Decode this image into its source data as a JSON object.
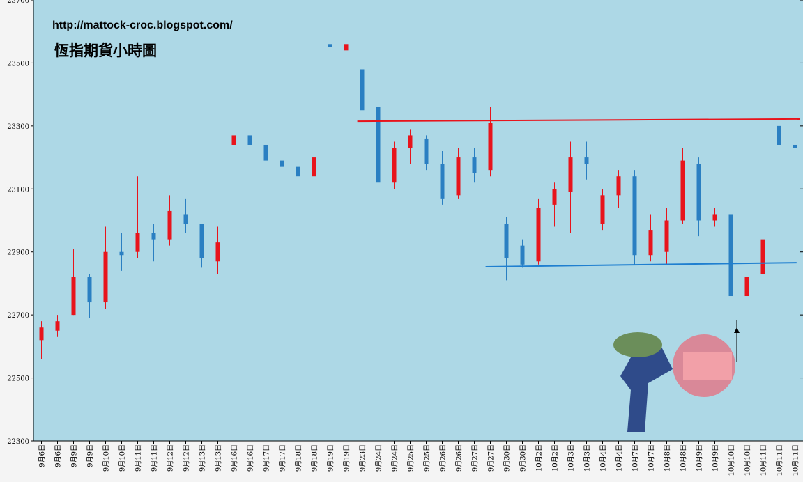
{
  "chart_data": {
    "type": "candlestick",
    "title": "恆指期貨小時圖",
    "subtitle": "http://mattock-croc.blogspot.com/",
    "categories": [
      "9月6日",
      "9月6日",
      "9月9日",
      "9月9日",
      "9月10日",
      "9月10日",
      "9月11日",
      "9月11日",
      "9月12日",
      "9月12日",
      "9月13日",
      "9月13日",
      "9月16日",
      "9月16日",
      "9月17日",
      "9月17日",
      "9月18日",
      "9月18日",
      "9月19日",
      "9月19日",
      "9月23日",
      "9月24日",
      "9月24日",
      "9月25日",
      "9月25日",
      "9月26日",
      "9月26日",
      "9月27日",
      "9月27日",
      "9月30日",
      "9月30日",
      "10月2日",
      "10月2日",
      "10月3日",
      "10月3日",
      "10月4日",
      "10月4日",
      "10月7日",
      "10月7日",
      "10月8日",
      "10月8日",
      "10月9日",
      "10月9日",
      "10月10日",
      "10月10日",
      "10月11日",
      "10月11日",
      "10月11日"
    ],
    "open": [
      22620,
      22650,
      22700,
      22820,
      22740,
      22900,
      22900,
      22960,
      22940,
      23020,
      22990,
      22870,
      23240,
      23270,
      23240,
      23190,
      23170,
      23140,
      23560,
      23540,
      23480,
      23360,
      23120,
      23230,
      23260,
      23180,
      23080,
      23200,
      23160,
      22990,
      22920,
      22870,
      23050,
      23090,
      23200,
      22990,
      23080,
      23140,
      22890,
      22900,
      23000,
      23180,
      23000,
      23020,
      22760,
      22830,
      23300,
      23240
    ],
    "high": [
      22680,
      22700,
      22910,
      22830,
      22980,
      22960,
      23140,
      22990,
      23080,
      23070,
      22990,
      22980,
      23330,
      23330,
      23250,
      23300,
      23240,
      23250,
      23620,
      23580,
      23510,
      23380,
      23250,
      23290,
      23270,
      23220,
      23230,
      23230,
      23360,
      23010,
      22940,
      23070,
      23120,
      23250,
      23250,
      23100,
      23160,
      23160,
      23020,
      23040,
      23230,
      23200,
      23040,
      23110,
      22830,
      22980,
      23390,
      23270
    ],
    "low": [
      22560,
      22630,
      22700,
      22690,
      22720,
      22840,
      22880,
      22870,
      22920,
      22960,
      22850,
      22830,
      23210,
      23220,
      23170,
      23150,
      23130,
      23100,
      23530,
      23500,
      23320,
      23090,
      23100,
      23180,
      23160,
      23050,
      23070,
      23120,
      23140,
      22810,
      22850,
      22860,
      22980,
      22960,
      23130,
      22970,
      23040,
      22860,
      22870,
      22860,
      22990,
      22950,
      22980,
      22680,
      22760,
      22790,
      23200,
      23200
    ],
    "close": [
      22660,
      22680,
      22820,
      22740,
      22900,
      22890,
      22960,
      22940,
      23030,
      22990,
      22880,
      22930,
      23270,
      23240,
      23190,
      23170,
      23140,
      23200,
      23550,
      23560,
      23350,
      23120,
      23230,
      23270,
      23180,
      23070,
      23200,
      23150,
      23310,
      22880,
      22860,
      23040,
      23100,
      23200,
      23180,
      23080,
      23140,
      22890,
      22970,
      23000,
      23190,
      23000,
      23020,
      22760,
      22820,
      22940,
      23240,
      23230
    ],
    "up_color": "#e8141c",
    "down_color": "#2a7fc2",
    "ylim": [
      22300,
      23700
    ],
    "yticks": [
      22300,
      22500,
      22700,
      22900,
      23100,
      23300,
      23500,
      23700
    ],
    "trendlines": [
      {
        "color": "#e8141c",
        "x": [
          19.7,
          47.3
        ],
        "y": [
          23315,
          23322
        ]
      },
      {
        "color": "#1f7fd0",
        "x": [
          27.7,
          47.1
        ],
        "y": [
          22853,
          22866
        ]
      }
    ]
  }
}
